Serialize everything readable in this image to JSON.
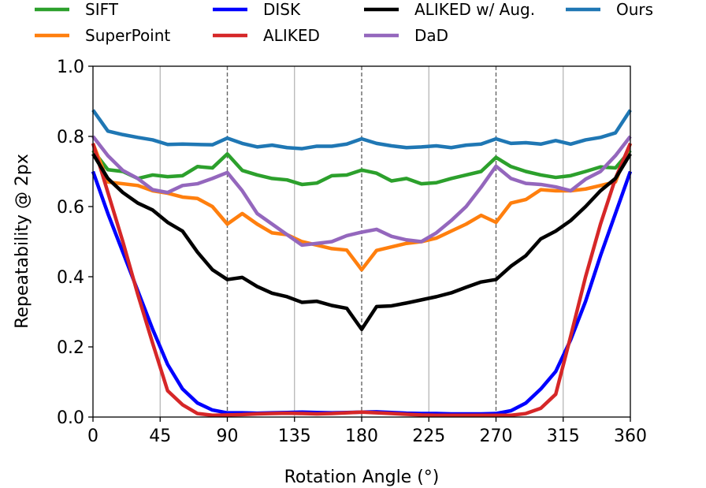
{
  "chart_data": {
    "type": "line",
    "xlabel": "Rotation Angle (°)",
    "ylabel": "Repeatability @ 2px",
    "xlim": [
      0,
      360
    ],
    "ylim": [
      0,
      1.0
    ],
    "xticks": [
      0,
      45,
      90,
      135,
      180,
      225,
      270,
      315,
      360
    ],
    "xtick_labels": [
      "0",
      "45",
      "90",
      "135",
      "180",
      "225",
      "270",
      "315",
      "360"
    ],
    "yticks": [
      0.0,
      0.2,
      0.4,
      0.6,
      0.8,
      1.0
    ],
    "ytick_labels": [
      "0.0",
      "0.2",
      "0.4",
      "0.6",
      "0.8",
      "1.0"
    ],
    "grid": {
      "solid_vertical": [
        45,
        135,
        225,
        315
      ],
      "dashed_vertical": [
        90,
        180,
        270
      ]
    },
    "legend_placement": "top",
    "x": [
      0,
      10,
      20,
      30,
      40,
      50,
      60,
      70,
      80,
      90,
      100,
      110,
      120,
      130,
      140,
      150,
      160,
      170,
      180,
      190,
      200,
      210,
      220,
      230,
      240,
      250,
      260,
      270,
      280,
      290,
      300,
      310,
      320,
      330,
      340,
      350,
      360
    ],
    "series": [
      {
        "name": "SIFT",
        "color": "#2ca02c",
        "values": [
          0.76,
          0.705,
          0.7,
          0.68,
          0.69,
          0.685,
          0.688,
          0.714,
          0.71,
          0.75,
          0.703,
          0.69,
          0.68,
          0.676,
          0.663,
          0.667,
          0.688,
          0.69,
          0.704,
          0.695,
          0.673,
          0.68,
          0.665,
          0.668,
          0.68,
          0.69,
          0.7,
          0.74,
          0.714,
          0.7,
          0.69,
          0.683,
          0.688,
          0.7,
          0.713,
          0.71,
          0.76
        ]
      },
      {
        "name": "SuperPoint",
        "color": "#ff7f0e",
        "values": [
          0.78,
          0.67,
          0.665,
          0.66,
          0.645,
          0.638,
          0.627,
          0.623,
          0.6,
          0.55,
          0.58,
          0.55,
          0.525,
          0.52,
          0.5,
          0.49,
          0.48,
          0.476,
          0.42,
          0.475,
          0.485,
          0.495,
          0.5,
          0.51,
          0.53,
          0.55,
          0.575,
          0.555,
          0.61,
          0.62,
          0.648,
          0.645,
          0.645,
          0.65,
          0.66,
          0.67,
          0.78
        ]
      },
      {
        "name": "DISK",
        "color": "#0000ff",
        "values": [
          0.7,
          0.58,
          0.47,
          0.36,
          0.25,
          0.15,
          0.08,
          0.04,
          0.02,
          0.012,
          0.012,
          0.011,
          0.012,
          0.013,
          0.014,
          0.013,
          0.012,
          0.013,
          0.014,
          0.015,
          0.013,
          0.011,
          0.01,
          0.01,
          0.009,
          0.009,
          0.009,
          0.01,
          0.018,
          0.04,
          0.08,
          0.13,
          0.22,
          0.33,
          0.46,
          0.58,
          0.7
        ]
      },
      {
        "name": "ALIKED",
        "color": "#d62728",
        "values": [
          0.78,
          0.64,
          0.5,
          0.35,
          0.21,
          0.075,
          0.035,
          0.01,
          0.005,
          0.006,
          0.007,
          0.009,
          0.01,
          0.011,
          0.01,
          0.009,
          0.01,
          0.012,
          0.014,
          0.012,
          0.01,
          0.008,
          0.006,
          0.005,
          0.005,
          0.005,
          0.005,
          0.005,
          0.005,
          0.01,
          0.025,
          0.065,
          0.23,
          0.4,
          0.55,
          0.68,
          0.78
        ]
      },
      {
        "name": "ALIKED w/ Aug.",
        "color": "#000000",
        "values": [
          0.75,
          0.68,
          0.64,
          0.61,
          0.59,
          0.555,
          0.53,
          0.47,
          0.42,
          0.392,
          0.398,
          0.372,
          0.353,
          0.343,
          0.327,
          0.33,
          0.318,
          0.31,
          0.25,
          0.315,
          0.317,
          0.325,
          0.334,
          0.343,
          0.354,
          0.37,
          0.385,
          0.392,
          0.43,
          0.46,
          0.508,
          0.53,
          0.56,
          0.6,
          0.645,
          0.68,
          0.75
        ]
      },
      {
        "name": "DaD",
        "color": "#9467bd",
        "values": [
          0.8,
          0.745,
          0.703,
          0.68,
          0.648,
          0.64,
          0.66,
          0.665,
          0.68,
          0.697,
          0.645,
          0.58,
          0.55,
          0.52,
          0.49,
          0.495,
          0.5,
          0.517,
          0.527,
          0.535,
          0.515,
          0.505,
          0.5,
          0.525,
          0.56,
          0.6,
          0.655,
          0.715,
          0.68,
          0.666,
          0.663,
          0.656,
          0.645,
          0.678,
          0.7,
          0.745,
          0.8
        ]
      },
      {
        "name": "Ours",
        "color": "#1f77b4",
        "values": [
          0.875,
          0.815,
          0.805,
          0.797,
          0.79,
          0.777,
          0.778,
          0.777,
          0.776,
          0.795,
          0.78,
          0.77,
          0.775,
          0.768,
          0.765,
          0.772,
          0.772,
          0.778,
          0.793,
          0.78,
          0.773,
          0.768,
          0.77,
          0.773,
          0.768,
          0.775,
          0.778,
          0.793,
          0.78,
          0.782,
          0.778,
          0.788,
          0.778,
          0.79,
          0.797,
          0.81,
          0.875
        ]
      }
    ]
  }
}
